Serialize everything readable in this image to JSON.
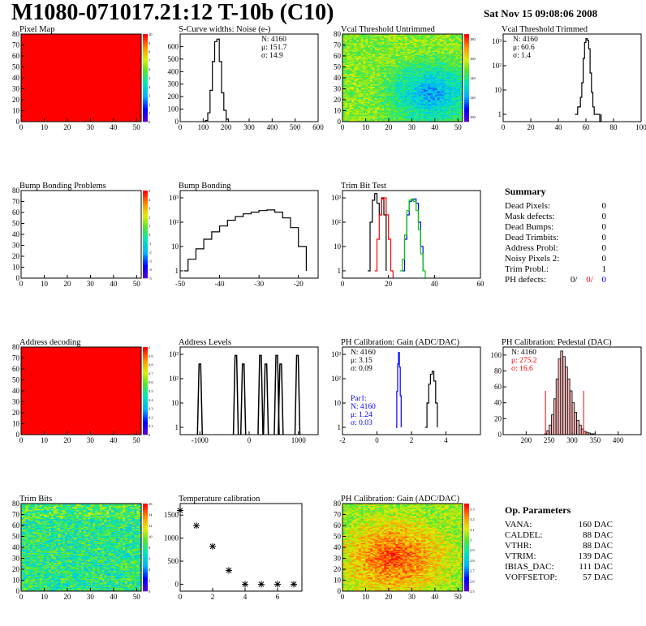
{
  "header": {
    "title": "M1080-071017.21:12 T-10b (C10)",
    "date": "Sat Nov 15 09:08:06 2008"
  },
  "chart_data": [
    {
      "id": "pixel-map",
      "type": "heatmap",
      "title": "Pixel Map",
      "xlim": [
        0,
        52
      ],
      "ylim": [
        0,
        80
      ],
      "xticks": [
        0,
        10,
        20,
        30,
        40,
        50
      ],
      "yticks": [
        0,
        10,
        20,
        30,
        40,
        50,
        60,
        70,
        80
      ],
      "uniform_color": "#ff0000",
      "z_ticks": [
        0,
        1,
        2,
        3,
        4,
        5,
        6,
        7,
        8,
        9,
        10
      ]
    },
    {
      "id": "scurve-noise",
      "type": "line",
      "step": true,
      "title": "S-Curve widths: Noise (e-)",
      "xlim": [
        0,
        600
      ],
      "ylim": [
        0,
        700
      ],
      "xticks": [
        0,
        100,
        200,
        300,
        400,
        500,
        600
      ],
      "yticks": [
        0,
        100,
        200,
        300,
        400,
        500,
        600
      ],
      "stats": [
        "N: 4160",
        "μ: 151.7",
        "σ: 14.9"
      ],
      "series": [
        {
          "x": [
            100,
            110,
            120,
            130,
            140,
            150,
            160,
            170,
            180,
            190,
            200,
            210
          ],
          "y": [
            0,
            10,
            70,
            250,
            480,
            640,
            660,
            480,
            230,
            90,
            20,
            0
          ]
        }
      ]
    },
    {
      "id": "vcal-untrimmed",
      "type": "heatmap",
      "title": "Vcal Threshold Untrimmed",
      "xlim": [
        0,
        52
      ],
      "ylim": [
        0,
        80
      ],
      "xticks": [
        0,
        10,
        20,
        30,
        40,
        50
      ],
      "yticks": [
        0,
        10,
        20,
        30,
        40,
        50,
        60,
        70,
        80
      ],
      "z_ticks": [
        100,
        120,
        140,
        160,
        180
      ],
      "z_range": [
        95,
        185
      ]
    },
    {
      "id": "vcal-trimmed",
      "type": "line",
      "step": true,
      "logy": true,
      "title": "Vcal Threshold Trimmed",
      "xlim": [
        0,
        100
      ],
      "ylim": [
        0.5,
        2000
      ],
      "xticks": [
        0,
        20,
        40,
        60,
        80,
        100
      ],
      "yticks": [
        1,
        10,
        100,
        1000
      ],
      "stats": [
        "N: 4160",
        "μ: 60.6",
        "σ: 1.4"
      ],
      "series": [
        {
          "x": [
            52,
            54,
            56,
            57,
            58,
            59,
            60,
            61,
            62,
            63,
            64,
            65,
            66,
            70,
            71
          ],
          "y": [
            1,
            2,
            5,
            20,
            200,
            900,
            1300,
            1100,
            500,
            50,
            8,
            2,
            1,
            0,
            1
          ]
        }
      ]
    },
    {
      "id": "bump-problems",
      "type": "heatmap",
      "title": "Bump Bonding Problems",
      "xlim": [
        0,
        52
      ],
      "ylim": [
        0,
        80
      ],
      "xticks": [
        0,
        10,
        20,
        30,
        40,
        50
      ],
      "yticks": [
        0,
        10,
        20,
        30,
        40,
        50,
        60,
        70,
        80
      ],
      "uniform_color": "#ffffff",
      "z_ticks": [
        -5,
        -4,
        -3,
        -2,
        -1,
        0,
        1,
        2,
        3,
        4,
        5
      ]
    },
    {
      "id": "bump-bonding",
      "type": "line",
      "step": true,
      "logy": true,
      "title": "Bump Bonding",
      "xlim": [
        -50,
        -15
      ],
      "ylim": [
        0.5,
        2000
      ],
      "xticks": [
        -50,
        -40,
        -30,
        -20
      ],
      "yticks": [
        1,
        10,
        100,
        1000
      ],
      "series": [
        {
          "x": [
            -49,
            -48,
            -46,
            -44,
            -42,
            -40,
            -38,
            -36,
            -34,
            -32,
            -30,
            -28,
            -26,
            -24,
            -22,
            -20,
            -18
          ],
          "y": [
            1,
            3,
            8,
            20,
            40,
            70,
            120,
            170,
            220,
            260,
            300,
            320,
            260,
            150,
            60,
            10,
            1
          ]
        }
      ]
    },
    {
      "id": "trim-bit-test",
      "type": "line",
      "step": true,
      "logy": true,
      "title": "Trim Bit Test",
      "xlim": [
        0,
        60
      ],
      "ylim": [
        0.5,
        2000
      ],
      "xticks": [
        0,
        20,
        40,
        60
      ],
      "yticks": [
        1,
        10,
        100,
        1000
      ],
      "series": [
        {
          "color": "#000000",
          "x": [
            11,
            12,
            13,
            14,
            15,
            16,
            17,
            18,
            19
          ],
          "y": [
            1,
            100,
            800,
            1500,
            600,
            200,
            1000,
            200,
            1
          ]
        },
        {
          "color": "#ff0000",
          "x": [
            14,
            15,
            16,
            17,
            18,
            19,
            20,
            21,
            22
          ],
          "y": [
            1,
            20,
            200,
            900,
            1000,
            200,
            20,
            1,
            0
          ]
        },
        {
          "color": "#0000ff",
          "x": [
            26,
            27,
            28,
            29,
            30,
            31,
            32,
            33,
            34,
            35
          ],
          "y": [
            1,
            20,
            200,
            700,
            800,
            900,
            600,
            100,
            10,
            1
          ]
        },
        {
          "color": "#00cc00",
          "x": [
            25,
            26,
            27,
            28,
            29,
            30,
            31,
            32,
            33,
            34,
            35,
            36
          ],
          "y": [
            1,
            3,
            30,
            300,
            800,
            900,
            700,
            300,
            50,
            5,
            1,
            0
          ]
        }
      ]
    },
    {
      "id": "address-decoding",
      "type": "heatmap",
      "title": "Address decoding",
      "xlim": [
        0,
        52
      ],
      "ylim": [
        0,
        80
      ],
      "xticks": [
        0,
        10,
        20,
        30,
        40,
        50
      ],
      "yticks": [
        0,
        10,
        20,
        30,
        40,
        50,
        60,
        70,
        80
      ],
      "uniform_color": "#ff0000",
      "z_ticks": [
        0,
        0.1,
        0.2,
        0.3,
        0.4,
        0.5,
        0.6,
        0.7,
        0.8,
        0.9,
        1
      ]
    },
    {
      "id": "address-levels",
      "type": "line",
      "step": true,
      "logy": true,
      "title": "Address Levels",
      "xlim": [
        -1400,
        1400
      ],
      "ylim": [
        0.5,
        2000
      ],
      "xticks": [
        -1000,
        0,
        1000
      ],
      "yticks": [
        1,
        10,
        100,
        1000
      ],
      "peaks": [
        -1000,
        -270,
        -120,
        230,
        340,
        560,
        640,
        980
      ]
    },
    {
      "id": "ph-gain",
      "type": "line",
      "step": true,
      "logy": true,
      "title": "PH Calibration: Gain (ADC/DAC)",
      "xlim": [
        -2,
        6
      ],
      "ylim": [
        0.5,
        2000
      ],
      "xticks": [
        -2,
        0,
        2,
        4
      ],
      "yticks": [
        1,
        10,
        100,
        1000
      ],
      "stats": [
        "N: 4160",
        "μ: 3.15",
        "σ: 0.09"
      ],
      "stats2": [
        "Par1:",
        "N: 4160",
        "μ: 1.24",
        "σ: 0.03"
      ],
      "series": [
        {
          "color": "#000000",
          "x": [
            2.8,
            2.9,
            3.0,
            3.1,
            3.2,
            3.3,
            3.4,
            3.5
          ],
          "y": [
            1,
            10,
            60,
            150,
            200,
            80,
            10,
            1
          ]
        },
        {
          "color": "#0000ff",
          "x": [
            1.1,
            1.15,
            1.2,
            1.25,
            1.3,
            1.35,
            1.4
          ],
          "y": [
            1,
            30,
            400,
            1200,
            300,
            20,
            1
          ]
        }
      ]
    },
    {
      "id": "ph-pedestal",
      "type": "bar",
      "title": "PH Calibration: Pedestal (DAC)",
      "xlim": [
        150,
        450
      ],
      "ylim": [
        0,
        110
      ],
      "xticks": [
        200,
        250,
        300,
        350,
        400
      ],
      "yticks": [
        0,
        20,
        40,
        60,
        80,
        100
      ],
      "stats": [
        "N: 4160",
        "μ: 275.2",
        "σ: 16.6"
      ],
      "cuts": [
        242,
        325
      ],
      "x": [
        240,
        245,
        250,
        255,
        260,
        265,
        270,
        275,
        280,
        285,
        290,
        295,
        300,
        305,
        310,
        315,
        320,
        325,
        330,
        335,
        340,
        345,
        350
      ],
      "values": [
        1,
        5,
        12,
        25,
        45,
        70,
        95,
        105,
        98,
        85,
        70,
        55,
        40,
        28,
        18,
        12,
        7,
        4,
        3,
        2,
        1,
        1,
        0
      ]
    },
    {
      "id": "trim-bits",
      "type": "heatmap",
      "title": "Trim Bits",
      "xlim": [
        0,
        52
      ],
      "ylim": [
        0,
        80
      ],
      "xticks": [
        0,
        10,
        20,
        30,
        40,
        50
      ],
      "yticks": [
        0,
        10,
        20,
        30,
        40,
        50,
        60,
        70,
        80
      ],
      "z_ticks": [
        0,
        2,
        4,
        6,
        8,
        10,
        12,
        14,
        16
      ],
      "z_range": [
        0,
        16
      ]
    },
    {
      "id": "temperature-calibration",
      "type": "scatter",
      "title": "Temperature calibration",
      "xlim": [
        0,
        7.5
      ],
      "ylim": [
        -150,
        1750
      ],
      "xticks": [
        0,
        2,
        4,
        6
      ],
      "yticks": [
        0,
        500,
        1000,
        1500
      ],
      "x": [
        0,
        1,
        2,
        3,
        4,
        5,
        6,
        7
      ],
      "y": [
        1600,
        1270,
        820,
        300,
        0,
        0,
        0,
        0
      ]
    },
    {
      "id": "ph-gain-map",
      "type": "heatmap",
      "title": "PH Calibration: Gain (ADC/DAC)",
      "xlim": [
        0,
        52
      ],
      "ylim": [
        0,
        80
      ],
      "xticks": [
        0,
        10,
        20,
        30,
        40,
        50
      ],
      "yticks": [
        0,
        10,
        20,
        30,
        40,
        50,
        60,
        70,
        80
      ],
      "z_ticks": [
        2.5,
        2.6,
        2.7,
        2.8,
        2.9,
        3,
        3.1,
        3.2,
        3.3
      ],
      "z_range": [
        2.5,
        3.35
      ]
    }
  ],
  "summary": {
    "title": "Summary",
    "rows": [
      {
        "label": "Dead Pixels:",
        "value": "0"
      },
      {
        "label": "Mask defects:",
        "value": "0"
      },
      {
        "label": "Dead Bumps:",
        "value": "0"
      },
      {
        "label": "Dead Trimbits:",
        "value": "0"
      },
      {
        "label": "Address Probl:",
        "value": "0"
      },
      {
        "label": "Noisy Pixels 2:",
        "value": "0"
      },
      {
        "label": "Trim Probl.:",
        "value": "1"
      }
    ],
    "ph_label": "PH defects:",
    "ph_values": [
      "0/",
      "0/",
      "0"
    ],
    "ph_colors": [
      "#000000",
      "#ff0000",
      "#0000ff"
    ]
  },
  "op_params": {
    "title": "Op. Parameters",
    "rows": [
      {
        "label": "VANA:",
        "value": "160 DAC"
      },
      {
        "label": "CALDEL:",
        "value": "88 DAC"
      },
      {
        "label": "VTHR:",
        "value": "88 DAC"
      },
      {
        "label": "VTRIM:",
        "value": "139 DAC"
      },
      {
        "label": "IBIAS_DAC:",
        "value": "111 DAC"
      },
      {
        "label": "VOFFSETOP:",
        "value": "57 DAC"
      }
    ]
  }
}
